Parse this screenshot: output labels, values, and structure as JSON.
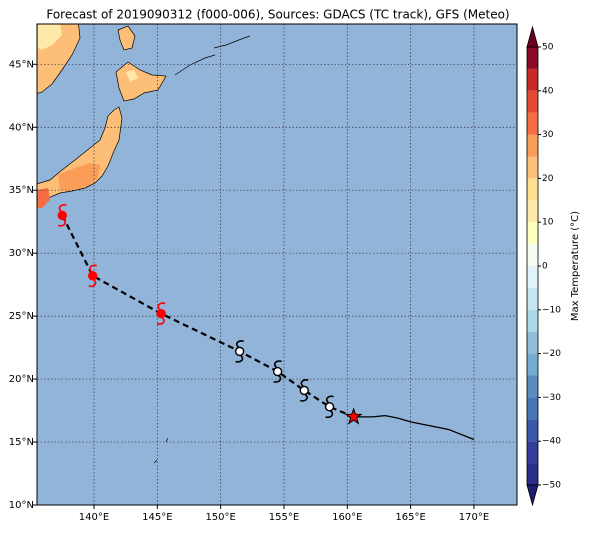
{
  "chart_data": {
    "type": "map",
    "title": "Forecast of 2019090312 (f000-006), Sources: GDACS (TC track), GFS (Meteo)",
    "xlim": [
      135.5,
      173.4
    ],
    "ylim": [
      10,
      48.2
    ],
    "xticks": [
      {
        "value": 140,
        "label": "140°E"
      },
      {
        "value": 145,
        "label": "145°E"
      },
      {
        "value": 150,
        "label": "150°E"
      },
      {
        "value": 155,
        "label": "155°E"
      },
      {
        "value": 160,
        "label": "160°E"
      },
      {
        "value": 165,
        "label": "165°E"
      },
      {
        "value": 170,
        "label": "170°E"
      }
    ],
    "yticks": [
      {
        "value": 10,
        "label": "10°N"
      },
      {
        "value": 15,
        "label": "15°N"
      },
      {
        "value": 20,
        "label": "20°N"
      },
      {
        "value": 25,
        "label": "25°N"
      },
      {
        "value": 30,
        "label": "30°N"
      },
      {
        "value": 35,
        "label": "35°N"
      },
      {
        "value": 40,
        "label": "40°N"
      },
      {
        "value": 45,
        "label": "45°N"
      }
    ],
    "grid": true,
    "track": {
      "observed": {
        "color": "#ff0000",
        "lon": [
          137.5,
          139.9,
          145.3
        ],
        "lat": [
          33,
          28.2,
          25.2
        ]
      },
      "forecast": {
        "color": "#000000",
        "lon": [
          151.5,
          154.5,
          156.6,
          158.6
        ],
        "lat": [
          22.2,
          20.6,
          19.1,
          17.8
        ]
      },
      "current": {
        "color": "#ff0000",
        "lon": 160.5,
        "lat": 17
      },
      "extension": {
        "color": "#000000",
        "lon": [
          162,
          163,
          164,
          165,
          168,
          170
        ],
        "lat": [
          17,
          17.1,
          16.9,
          16.6,
          16,
          15.2
        ]
      }
    },
    "colorbar": {
      "label": "Max Temperature (°C)",
      "lim": [
        -50,
        50
      ],
      "ticks": [
        {
          "value": -50,
          "label": "−50"
        },
        {
          "value": -40,
          "label": "−40"
        },
        {
          "value": -30,
          "label": "−30"
        },
        {
          "value": -20,
          "label": "−20"
        },
        {
          "value": -10,
          "label": "−10"
        },
        0,
        10,
        20,
        30,
        40,
        50
      ],
      "levels": [
        -50,
        -45,
        -40,
        -35,
        -30,
        -25,
        -20,
        -15,
        -10,
        -5,
        0,
        5,
        10,
        15,
        20,
        25,
        30,
        35,
        40,
        45,
        50
      ],
      "colors": [
        "#2a2f8a",
        "#343d9c",
        "#3a58a8",
        "#4575b4",
        "#5b8cc0",
        "#74add1",
        "#91bfdb",
        "#abd9e9",
        "#c5e6f0",
        "#e0f3f8",
        "#f7fcf0",
        "#ffffbf",
        "#fee9a8",
        "#fee090",
        "#fdc07a",
        "#f99d59",
        "#f46d43",
        "#e34a33",
        "#c62a28",
        "#8b0a26"
      ],
      "under": "#1c1f6e",
      "over": "#6b0020"
    }
  }
}
